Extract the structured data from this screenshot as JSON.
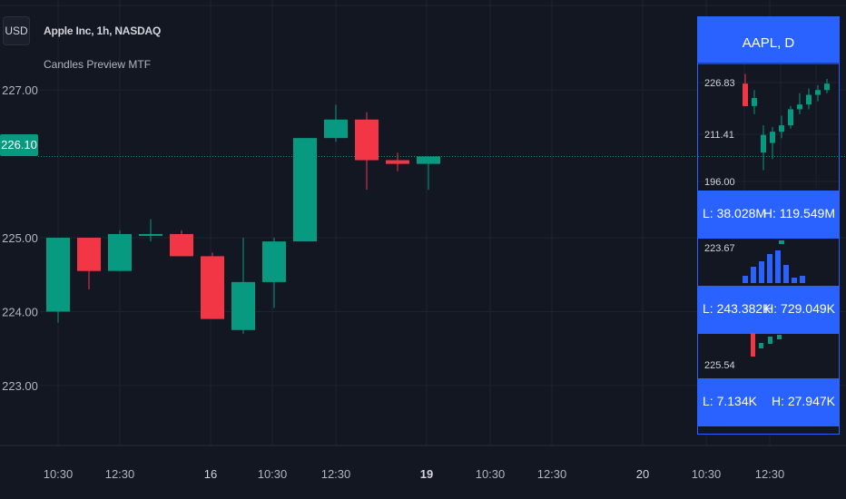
{
  "header": {
    "currency": "USD",
    "title": "Apple Inc, 1h, NASDAQ",
    "indicator": "Candles Preview MTF"
  },
  "current_price": "226.10",
  "colors": {
    "up": "#089981",
    "down": "#f23645",
    "accent": "#2962ff",
    "bg": "#131722",
    "grid": "#1f2330"
  },
  "chart_data": {
    "type": "candlestick",
    "y_ticks": [
      "227.00",
      "226.10",
      "225.00",
      "224.00",
      "223.00"
    ],
    "x_ticks": [
      "10:30",
      "12:30",
      "16",
      "10:30",
      "12:30",
      "19",
      "10:30",
      "12:30",
      "20",
      "10:30",
      "12:30"
    ],
    "ylim": [
      222.2,
      227.85
    ],
    "candles": [
      {
        "o": 224.0,
        "h": 225.0,
        "l": 223.85,
        "c": 225.0
      },
      {
        "o": 225.0,
        "h": 225.0,
        "l": 224.3,
        "c": 224.55
      },
      {
        "o": 224.55,
        "h": 225.1,
        "l": 224.55,
        "c": 225.05
      },
      {
        "o": 225.05,
        "h": 225.25,
        "l": 224.95,
        "c": 225.05
      },
      {
        "o": 225.05,
        "h": 225.1,
        "l": 224.75,
        "c": 224.75
      },
      {
        "o": 224.75,
        "h": 224.8,
        "l": 223.9,
        "c": 223.9
      },
      {
        "o": 223.75,
        "h": 225.0,
        "l": 223.7,
        "c": 224.4
      },
      {
        "o": 224.4,
        "h": 225.0,
        "l": 224.05,
        "c": 224.95
      },
      {
        "o": 224.95,
        "h": 226.35,
        "l": 224.95,
        "c": 226.35
      },
      {
        "o": 226.35,
        "h": 226.8,
        "l": 226.3,
        "c": 226.6
      },
      {
        "o": 226.6,
        "h": 226.7,
        "l": 225.65,
        "c": 226.05
      },
      {
        "o": 226.05,
        "h": 226.15,
        "l": 225.9,
        "c": 226.0
      },
      {
        "o": 226.0,
        "h": 226.1,
        "l": 225.65,
        "c": 226.1
      }
    ]
  },
  "panel": {
    "title": "AAPL, D",
    "price_ticks": [
      "226.83",
      "211.41",
      "196.00"
    ],
    "row1": {
      "low": "L: 38.028M",
      "high": "H: 119.549M"
    },
    "vol_tick": "223.67",
    "row2": {
      "low": "L: 243.382K",
      "high": "H: 729.049K"
    },
    "low_tick": "225.54",
    "row3": {
      "low": "L: 7.134K",
      "high": "H: 27.947K"
    },
    "daily_candles": [
      {
        "o": 226.5,
        "h": 229.5,
        "l": 219.5,
        "c": 219.5
      },
      {
        "o": 219.5,
        "h": 224.5,
        "l": 217.0,
        "c": 222.0
      },
      {
        "o": 205.0,
        "h": 213.5,
        "l": 199.5,
        "c": 210.5
      },
      {
        "o": 208.0,
        "h": 213.0,
        "l": 203.0,
        "c": 211.5
      },
      {
        "o": 211.5,
        "h": 216.5,
        "l": 209.5,
        "c": 213.5
      },
      {
        "o": 213.5,
        "h": 219.5,
        "l": 212.5,
        "c": 218.5
      },
      {
        "o": 218.5,
        "h": 223.5,
        "l": 217.0,
        "c": 220.0
      },
      {
        "o": 220.0,
        "h": 225.0,
        "l": 218.5,
        "c": 223.0
      },
      {
        "o": 223.0,
        "h": 226.0,
        "l": 221.0,
        "c": 224.5
      },
      {
        "o": 224.5,
        "h": 228.0,
        "l": 223.5,
        "c": 226.5
      }
    ],
    "volumes": [
      0.2,
      0.45,
      0.6,
      0.8,
      0.9,
      0.5,
      0.15,
      0.2
    ]
  }
}
